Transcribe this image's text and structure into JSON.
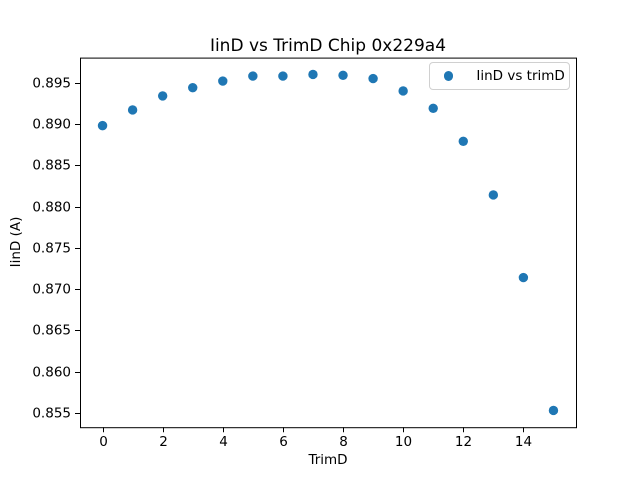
{
  "figure": {
    "background": "#ffffff"
  },
  "chart_data": {
    "type": "scatter",
    "title": "IinD vs TrimD Chip 0x229a4",
    "xlabel": "TrimD",
    "ylabel": "IinD (A)",
    "legend": {
      "position": "upper right",
      "entries": [
        {
          "label": "IinD vs trimD",
          "marker_color": "#1f77b4"
        }
      ]
    },
    "series": [
      {
        "name": "IinD vs trimD",
        "x": [
          0,
          1,
          2,
          3,
          4,
          5,
          6,
          7,
          8,
          9,
          10,
          11,
          12,
          13,
          14,
          15
        ],
        "y": [
          0.8898,
          0.8917,
          0.8934,
          0.8944,
          0.8952,
          0.8958,
          0.8958,
          0.896,
          0.8959,
          0.8955,
          0.894,
          0.8919,
          0.8879,
          0.8814,
          0.8714,
          0.8553
        ]
      }
    ],
    "xlim": [
      -0.75,
      15.75
    ],
    "ylim": [
      0.85327,
      0.89804
    ],
    "x_ticks": [
      0,
      2,
      4,
      6,
      8,
      10,
      12,
      14
    ],
    "x_tick_labels": [
      "0",
      "2",
      "4",
      "6",
      "8",
      "10",
      "12",
      "14"
    ],
    "y_ticks": [
      0.855,
      0.86,
      0.865,
      0.87,
      0.875,
      0.88,
      0.885,
      0.89,
      0.895
    ],
    "y_tick_labels": [
      "0.855",
      "0.860",
      "0.865",
      "0.870",
      "0.875",
      "0.880",
      "0.885",
      "0.890",
      "0.895"
    ],
    "grid": false,
    "marker_color": "#1f77b4",
    "axis_color": "#000000",
    "marker_diameter_px": 9.4
  }
}
